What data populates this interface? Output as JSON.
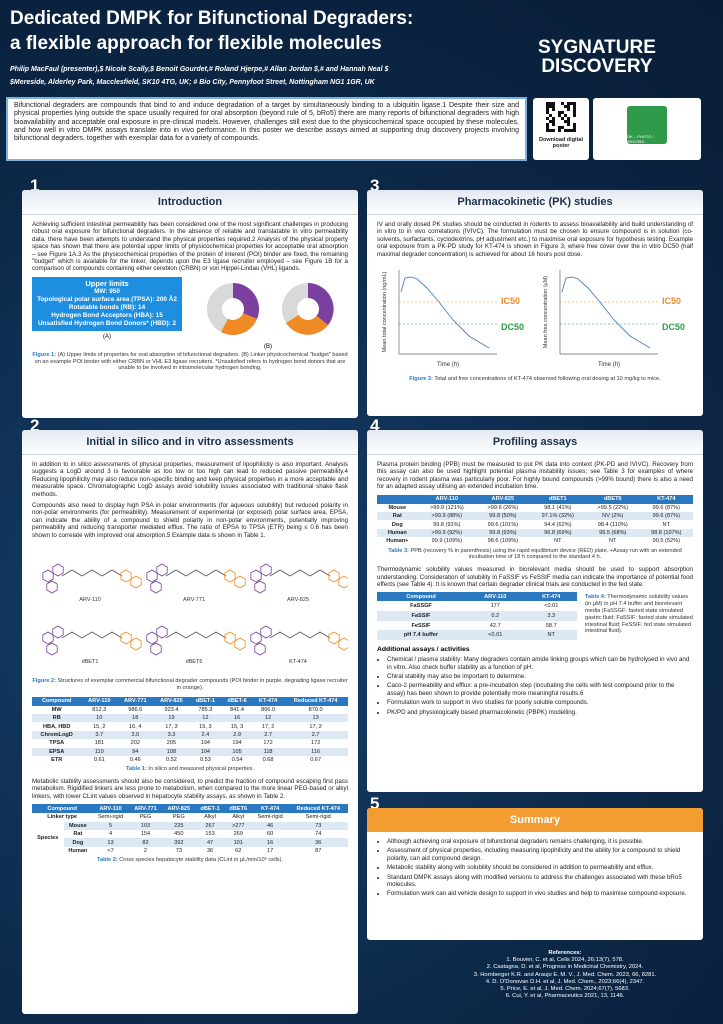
{
  "header": {
    "title_line1": "Dedicated DMPK for Bifunctional Degraders:",
    "title_line2": "a flexible approach for flexible molecules",
    "authors": "Philip MacFaul (presenter),$ Nicole Scally,$ Benoit Gourdet,# Roland Hjerpe,# Allan Jordan $,# and Hannah Neal $",
    "affiliations": "$Mereside, Alderley Park, Macclesfield, SK10 4TG, UK; # Bio City, Pennyfoot Street, Nottingham NG1 1GR, UK",
    "logo_line1": "SYGNATURE",
    "logo_line2": "DISCOVERY"
  },
  "intro": {
    "text": "Bifunctional degraders are compounds that bind to and induce degradation of a target by simultaneously binding to a ubiquitin ligase.1 Despite their size and physical properties lying outside the space usually required for oral absorption (beyond rule of 5, bRo5) there are many reports of bifunctional degraders with high bioavailability and acceptable oral exposure in pre-clinical models. However, challenges still exist due to the physicochemical space occupied by these molecules, and how well in vitro DMPK assays translate into in vivo performance. In this poster we describe assays aimed at supporting drug discovery projects involving bifunctional degraders, together with exemplar data for a variety of compounds.",
    "qr_label": "Download digital poster",
    "photo_label": "OK – PHOTO / RECORD"
  },
  "introduction": {
    "number": "1",
    "title": "Introduction",
    "text": "Achieving sufficient intestinal permeability has been considered one of the most significant challenges in producing robust oral exposure for bifunctional degraders. In the absence of reliable and translatable in vitro permeability data, there have been attempts to understand the physical properties required.2 Analysis of the physical property space has shown that there are potential upper limits of physicochemical properties for acceptable oral absorption – see Figure 1A.3 As the physicochemical properties of the protein of interest (POI) binder are fixed, the remaining \"budget\" which is available for the linker, depends upon the E3 ligase recruiter employed – see Figure 1B for a comparison of compounds containing either cereblon (CRBN) or von Hippel-Lindau (VHL) ligands.",
    "upper_limits": {
      "title": "Upper limits",
      "items": [
        "MW: 950",
        "Topological polar surface area (TPSA): 200 Å2",
        "Rotatable bonds (RB): 14",
        "Hydrogen Bond Acceptors (HBA): 15",
        "Unsatisfied Hydrogen Bond Donors* (HBD): 2"
      ]
    },
    "panel_a": "(A)",
    "panel_b": "(B)",
    "caption_label": "Figure 1:",
    "caption": "(A) Upper limits of properties for oral absorption of bifunctional degraders. (B) Linker physicochemical \"budget\" based on an example POI binder with either CRBN or VHL E3 ligase recruiters. *Unsatisfied refers to hydrogen bond donors that are unable to be involved in intramolecular hydrogen bonding."
  },
  "assessments": {
    "number": "2",
    "title": "Initial in silico and in vitro assessments",
    "paragraphs": [
      "In addition to in silico assessments of physical properties, measurement of lipophilicity is also important. Analysis suggests a LogD around 3 is favourable as too low or too high can lead to reduced passive permeability.4 Reducing lipophilicity may also reduce non-specific binding and keep physical properties in a more acceptable and measurable space. Chromatographic LogD assays avoid solubility issues associated with traditional shake flask methods.",
      "Compounds also need to display high PSA in polar environments (for aqueous solubility) but reduced polarity in non-polar environments (for permeability). Measurement of experimental (or exposed) polar surface area, EPSA, can indicate the ability of a compound to shield polarity in non-polar environments, potentially improving permeability and reducing transporter mediated efflux. The ratio of EPSA to TPSA (ETR) being ≤ 0.6 has been shown to correlate with improved oral absorption.5 Example data is shown in Table 1."
    ],
    "structures": [
      "ARV-110",
      "ARV-771",
      "ARV-825",
      "dBET1",
      "dBET6",
      "KT-474"
    ],
    "figure_caption_label": "Figure 2:",
    "figure_caption": "Structures of exemplar commercial bifunctional degrader compounds (POI binder in purple, degrading ligase recruiter in orange).",
    "table1": {
      "header": [
        "Compound",
        "ARV-110",
        "ARV-771",
        "ARV-825",
        "dBET-1",
        "dBET-6",
        "KT-474",
        "Reduced KT-474"
      ],
      "rows": [
        [
          "MW",
          "812.3",
          "986.6",
          "923.4",
          "785.3",
          "841.4",
          "866.0",
          "870.0"
        ],
        [
          "RB",
          "10",
          "18",
          "19",
          "12",
          "16",
          "12",
          "13"
        ],
        [
          "HBA, HBD",
          "15, 2",
          "16, 4",
          "17, 3",
          "15, 3",
          "15, 3",
          "17, 2",
          "17, 2"
        ],
        [
          "ChromLogD",
          "3.7",
          "3.0",
          "3.3",
          "2.4",
          "2.9",
          "2.7",
          "2.7"
        ],
        [
          "TPSA",
          "181",
          "202",
          "205",
          "194",
          "194",
          "172",
          "172"
        ],
        [
          "EPSA",
          "110",
          "94",
          "108",
          "104",
          "105",
          "118",
          "116"
        ],
        [
          "ETR",
          "0.61",
          "0.46",
          "0.52",
          "0.53",
          "0.54",
          "0.68",
          "0.67"
        ]
      ]
    },
    "table1_caption_label": "Table 1:",
    "table1_caption": "In silico and measured physical properties.",
    "metabolic_text": "Metabolic stability assessments should also be considered, to predict the fraction of compound escaping first pass metabolism. Rigidified linkers are less prone to metabolism, when compared to the more linear PEG-based or alkyl linkers, with lower CLint values observed in hepatocyte stability assays, as shown in Table 2.",
    "table2": {
      "header": [
        "Compound",
        "ARV-110",
        "ARV-771",
        "ARV-825",
        "dBET-1",
        "dBET6",
        "KT-474",
        "Reduced KT-474"
      ],
      "linker_label": "Linker type",
      "linker_types": [
        "Semi-rigid",
        "PEG",
        "PEG",
        "Alkyl",
        "Alkyl",
        "Semi-rigid",
        "Semi-rigid"
      ],
      "species_label": "Species",
      "rows": [
        [
          "Mouse",
          "5",
          "103",
          "225",
          "267",
          ">277",
          "46",
          "73"
        ],
        [
          "Rat",
          "4",
          "154",
          "450",
          "153",
          "269",
          "60",
          "74"
        ],
        [
          "Dog",
          "13",
          "82",
          "392",
          "47",
          "101",
          "16",
          "36"
        ],
        [
          "Human",
          "<7",
          "2",
          "73",
          "36",
          "62",
          "17",
          "87"
        ]
      ]
    },
    "table2_caption_label": "Table 2:",
    "table2_caption": "Cross species hepatocyte stability data (CLint in µL/min/10⁶ cells)."
  },
  "pk": {
    "number": "3",
    "title": "Pharmacokinetic (PK) studies",
    "text": "IV and orally dosed PK studies should be conducted in rodents to assess bioavailability and build understanding of in vitro to in vivo correlations (IVIVC). The formulation must be chosen to ensure compound is in solution (co-solvents, surfactants, cyclodextrins, pH adjustment etc.) to maximise oral exposure for hypothesis testing. Example oral exposure from a PK-PD study for KT-474 is shown in Figure 3, where free cover over the in vitro DC50 (half maximal degrader concentration) is achieved for about 16 hours post dose.",
    "chart_left": {
      "y_label": "Mean total concentration (ng/mL)",
      "x_label": "Time (h)",
      "ic50": "IC50",
      "dc50": "DC50"
    },
    "chart_right": {
      "y_label": "Mean free concentration (µM)",
      "x_label": "Time (h)",
      "ic50": "IC50",
      "dc50": "DC50"
    },
    "caption_label": "Figure 3:",
    "caption": "Total and free concentrations of KT-474 observed following oral dosing at 10 mg/kg to mice."
  },
  "profiling": {
    "number": "4",
    "title": "Profiling assays",
    "ppb_text": "Plasma protein binding (PPB) must be measured to put PK data into context (PK-PD and IVIVC). Recovery from this assay can also be used highlight potential plasma instability issues; see Table 3 for examples of where recovery in rodent plasma was particularly poor. For highly bound compounds (>99% bound) there is also a need for an adapted assay utilising an extended incubation time.",
    "table3": {
      "header": [
        "ARV-110",
        "ARV-825",
        "dBET1",
        "dBET6",
        "KT-474"
      ],
      "rows": [
        [
          "Mouse",
          ">99.9 (121%)",
          ">99.6 (26%)",
          "98.1 (41%)",
          ">99.5 (22%)",
          "99.6 (87%)"
        ],
        [
          "Rat",
          ">99.9 (88%)",
          "99.8 (50%)",
          "97.1% (32%)",
          "NV (2%)",
          "99.6 (87%)"
        ],
        [
          "Dog",
          "99.8 (91%)",
          "99.6 (101%)",
          "94.4 (62%)",
          "98.4 (110%)",
          "NT"
        ],
        [
          "Human",
          ">99.9 (92%)",
          "99.8 (93%)",
          "96.8 (69%)",
          "99.5 (68%)",
          "98.8 (107%)"
        ],
        [
          "Human+",
          "99.9 (109%)",
          "98.6 (109%)",
          "NT",
          "NT",
          "90.5 (52%)"
        ]
      ]
    },
    "table3_caption_label": "Table 3:",
    "table3_caption": "PPB (recovery % in parenthesis) using the rapid equilibrium device (RED) plate. +Assay run with an extended incubation time of 18 h compared to the standard 4 h.",
    "solubility_text": "Thermodynamic solubility values measured in biorelevant media should be used to support absorption understanding. Consideration of solubility in FaSSIF vs FeSSIF media can indicate the importance of potential food effects (see Table 4). It is known that certain degrader clinical trials are conducted in the fed state.",
    "table4": {
      "header": [
        "Compound",
        "ARV-110",
        "KT-474"
      ],
      "rows": [
        [
          "FaSSGF",
          "177",
          "<0.01"
        ],
        [
          "FaSSIF",
          "0.2",
          "3.3"
        ],
        [
          "FeSSIF",
          "42.7",
          "58.7"
        ],
        [
          "pH 7.4 buffer",
          "<0.01",
          "NT"
        ]
      ]
    },
    "table4_caption_label": "Table 4:",
    "table4_caption": "Thermodynamic solubility values (in µM) in pH 7.4 buffer and biorelevant media (FaSSGF: fasted state simulated gastric fluid; FaSSIF: fasted state simulated intestinal fluid; FeSSIF: fed state simulated intestinal fluid).",
    "additional_title": "Additional assays / activities",
    "additional_items": [
      "Chemical / plasma stability: Many degraders contain amide linking groups which can be hydrolysed in vivo and in vitro. Also check buffer stability as a function of pH.",
      "Chiral stability may also be important to determine.",
      "Caco-2 permeability and efflux: a pre-incubation step (incubating the cells with test compound prior to the assay) has been shown to provide potentially more meaningful results.6",
      "Formulation work to support in vivo studies for poorly soluble compounds.",
      "PK/PD and physiologically based pharmacokinetic (PBPK) modelling."
    ]
  },
  "summary": {
    "number": "5",
    "title": "Summary",
    "items": [
      "Although achieving oral exposure of bifunctional degraders remains challenging, it is possible.",
      "Assessment of physical properties, including measuring lipophilicity and the ability for a compound to shield polarity, can aid compound design.",
      "Metabolic stability along with solubility should be considered in addition to permeability and efflux.",
      "Standard DMPK assays along with modified versions to address the challenges associated with these bRo5 molecules.",
      "Formulation work can aid vehicle design to support in vivo studies and help to maximise compound exposure."
    ]
  },
  "references": {
    "title": "References:",
    "items": [
      "1. Bouvier, C. et al, Cells 2024, 26;13(7), 578.",
      "2. Castagna, D. et al, Progress in Medicinal Chemistry, 2024.",
      "3. Hornberger K.R. and Araujo E. M. V., J. Med. Chem. 2023, 66, 8281.",
      "4. D. O'Donovan D.H. et al, J. Med. Chem., 2023;66(4), 2347.",
      "5. Price, E. et al, J. Med. Chem. 2024;67(7), 5683.",
      "6. Cui, Y. et al, Pharmaceutics 2021, 13, 1146."
    ]
  }
}
